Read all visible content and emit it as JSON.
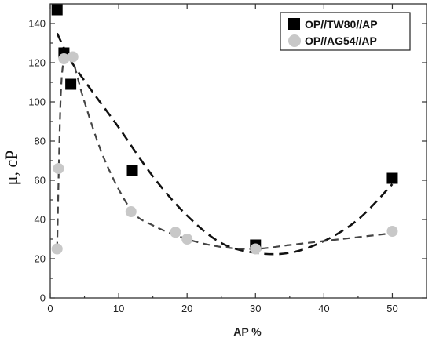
{
  "chart_data": {
    "type": "scatter",
    "title": "",
    "xlabel": "AP %",
    "ylabel": "μ, cP",
    "xlim": [
      0,
      55
    ],
    "ylim": [
      0,
      150
    ],
    "xticks": [
      0,
      10,
      20,
      30,
      40,
      50
    ],
    "yticks": [
      0,
      20,
      40,
      60,
      80,
      100,
      120,
      140
    ],
    "grid": false,
    "legend_position": "top-right",
    "series": [
      {
        "name": "OP//TW80//AP",
        "marker": "square",
        "color": "#000000",
        "x": [
          1,
          2,
          3,
          12,
          30,
          50
        ],
        "y": [
          147,
          125,
          109,
          65,
          27,
          61
        ],
        "trend": {
          "x": [
            1,
            3,
            6,
            10,
            15,
            20,
            25,
            30,
            35,
            40,
            45,
            50
          ],
          "y": [
            135,
            121,
            106,
            87,
            62,
            42,
            28,
            23,
            23,
            29,
            40,
            58
          ],
          "color": "#111111"
        }
      },
      {
        "name": "OP//AG54//AP",
        "marker": "circle",
        "color": "#c8c8c8",
        "x": [
          1,
          1.2,
          2,
          3.3,
          11.8,
          18.3,
          20,
          30,
          50
        ],
        "y": [
          25,
          66,
          122,
          123,
          44,
          33.5,
          30,
          25,
          34
        ],
        "trend": {
          "x": [
            1,
            1.5,
            2,
            2.5,
            3.3,
            5,
            8,
            11.8,
            15,
            20,
            25,
            30,
            35,
            40,
            45,
            50
          ],
          "y": [
            25,
            100,
            122,
            123,
            121,
            100,
            70,
            45,
            37,
            30,
            26,
            25,
            27,
            29,
            31,
            33
          ],
          "color": "#444444"
        }
      }
    ]
  }
}
